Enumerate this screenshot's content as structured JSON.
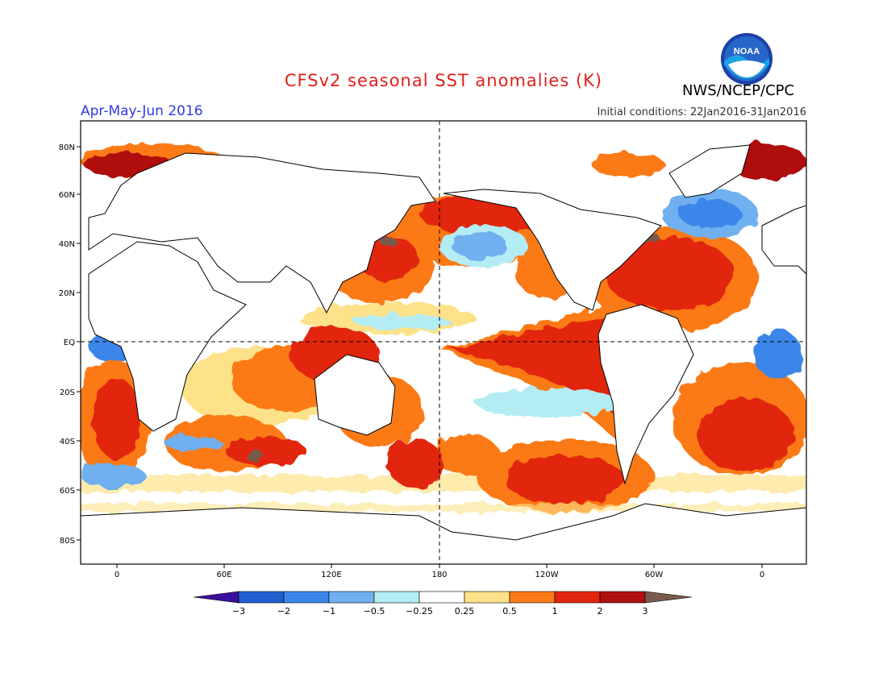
{
  "header": {
    "title": "CFSv2 seasonal SST anomalies (K)",
    "season": "Apr-May-Jun 2016",
    "initial_conditions": "Initial conditions: 22Jan2016-31Jan2016",
    "agency": "NWS/NCEP/CPC",
    "logo_text": "NOAA",
    "logo_icon": "noaa-logo-icon"
  },
  "map": {
    "projection": "equirectangular",
    "lon_labels": [
      "0",
      "60E",
      "120E",
      "180",
      "120W",
      "60W",
      "0"
    ],
    "lat_labels": [
      "80N",
      "60N",
      "40N",
      "20N",
      "EQ",
      "20S",
      "40S",
      "60S",
      "80S"
    ],
    "reference_lines": [
      "EQ",
      "180"
    ]
  },
  "colorbar": {
    "ticks": [
      "−3",
      "−2",
      "−1",
      "−0.5",
      "−0.25",
      "0.25",
      "0.5",
      "1",
      "2",
      "3"
    ],
    "colors": [
      "#3b0fa0",
      "#1f5fd0",
      "#3a86e8",
      "#6fb0f0",
      "#b4ecf4",
      "#ffffff",
      "#fde28a",
      "#fb7a18",
      "#e2260e",
      "#b01010",
      "#7a5a4c"
    ]
  },
  "colors": {
    "title": "#e0201b",
    "season": "#2b3be0",
    "land": "#ffffff",
    "coastline": "#000000"
  }
}
